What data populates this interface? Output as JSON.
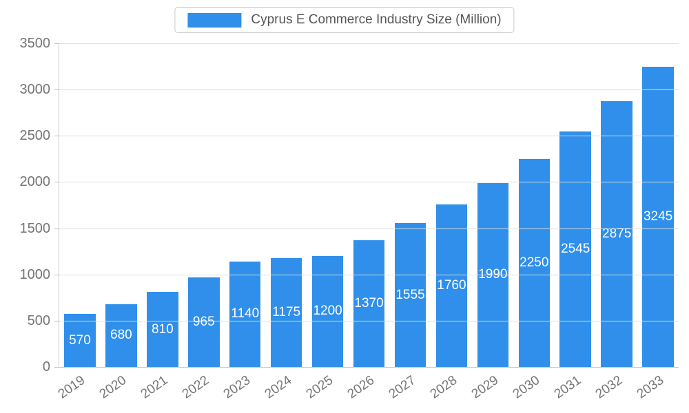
{
  "legend": {
    "swatch_color": "#2f8feb"
  },
  "chart_data": {
    "type": "bar",
    "title": "Cyprus E Commerce Industry Size (Million)",
    "categories": [
      "2019",
      "2020",
      "2021",
      "2022",
      "2023",
      "2024",
      "2025",
      "2026",
      "2027",
      "2028",
      "2029",
      "2030",
      "2031",
      "2032",
      "2033"
    ],
    "values": [
      570,
      680,
      810,
      965,
      1140,
      1175,
      1200,
      1370,
      1555,
      1760,
      1990,
      2250,
      2545,
      2875,
      3245
    ],
    "xlabel": "",
    "ylabel": "",
    "ylim": [
      0,
      3500
    ],
    "yticks": [
      0,
      500,
      1000,
      1500,
      2000,
      2500,
      3000,
      3500
    ],
    "grid": true,
    "legend_position": "top",
    "bar_color": "#2f8feb",
    "value_label_color": "#ffffff",
    "axis_text_color": "#757575",
    "gridline_color": "#dddddd"
  }
}
